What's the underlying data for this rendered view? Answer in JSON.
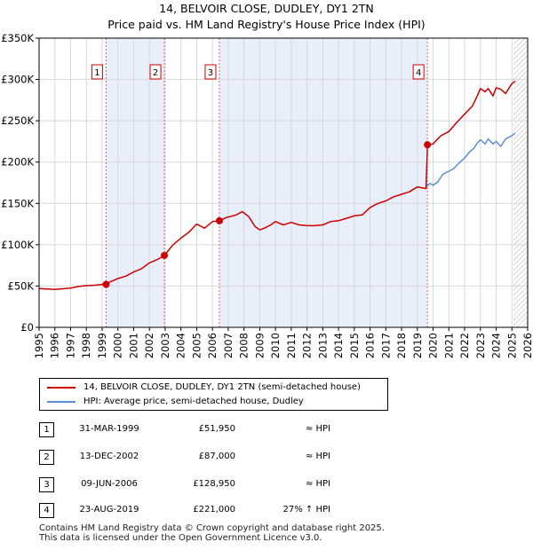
{
  "chart_data": {
    "type": "line",
    "title": "14, BELVOIR CLOSE, DUDLEY, DY1 2TN",
    "subtitle": "Price paid vs. HM Land Registry's House Price Index (HPI)",
    "xlabel": "",
    "ylabel": "",
    "xlim": [
      1995,
      2026
    ],
    "ylim": [
      0,
      350000
    ],
    "grid": true,
    "x_ticks": [
      "1995",
      "1996",
      "1997",
      "1998",
      "1999",
      "2000",
      "2001",
      "2002",
      "2003",
      "2004",
      "2005",
      "2006",
      "2007",
      "2008",
      "2009",
      "2010",
      "2011",
      "2012",
      "2013",
      "2014",
      "2015",
      "2016",
      "2017",
      "2018",
      "2019",
      "2020",
      "2021",
      "2022",
      "2023",
      "2024",
      "2025",
      "2026"
    ],
    "y_ticks": [
      {
        "value": 0,
        "label": "£0"
      },
      {
        "value": 50000,
        "label": "£50K"
      },
      {
        "value": 100000,
        "label": "£100K"
      },
      {
        "value": 150000,
        "label": "£150K"
      },
      {
        "value": 200000,
        "label": "£200K"
      },
      {
        "value": 250000,
        "label": "£250K"
      },
      {
        "value": 300000,
        "label": "£300K"
      },
      {
        "value": 350000,
        "label": "£350K"
      }
    ],
    "series": [
      {
        "name": "14, BELVOIR CLOSE, DUDLEY, DY1 2TN (semi-detached house)",
        "color": "#cc0000",
        "x": [
          1995.0,
          1996.0,
          1997.0,
          1997.5,
          1998.0,
          1998.5,
          1999.0,
          1999.25,
          1999.5,
          2000.0,
          2000.5,
          2001.0,
          2001.5,
          2002.0,
          2002.5,
          2002.95,
          2003.5,
          2004.0,
          2004.5,
          2005.0,
          2005.5,
          2006.0,
          2006.44,
          2006.9,
          2007.5,
          2007.9,
          2008.3,
          2008.7,
          2009.0,
          2009.3,
          2009.7,
          2010.0,
          2010.5,
          2011.0,
          2011.5,
          2012.0,
          2012.5,
          2013.0,
          2013.5,
          2014.0,
          2014.5,
          2015.0,
          2015.5,
          2016.0,
          2016.5,
          2017.0,
          2017.5,
          2018.0,
          2018.5,
          2019.0,
          2019.55,
          2019.64,
          2020.0,
          2020.5,
          2021.0,
          2021.5,
          2022.0,
          2022.5,
          2022.8,
          2023.0,
          2023.3,
          2023.5,
          2023.8,
          2024.0,
          2024.3,
          2024.6,
          2025.0,
          2025.2
        ],
        "values": [
          47000,
          46000,
          47500,
          49500,
          50500,
          51000,
          51950,
          53000,
          55000,
          59000,
          62000,
          67000,
          71000,
          78000,
          82000,
          87000,
          100000,
          108000,
          115000,
          125000,
          120000,
          128000,
          128950,
          133000,
          136000,
          140000,
          134000,
          122000,
          118000,
          120000,
          124000,
          128000,
          124000,
          127000,
          124000,
          123000,
          123000,
          124000,
          128000,
          129000,
          132000,
          135000,
          136000,
          145000,
          150000,
          153000,
          158000,
          161000,
          164000,
          170000,
          168000,
          221000,
          222000,
          232000,
          237000,
          248000,
          258000,
          268000,
          280000,
          289000,
          285000,
          289000,
          280000,
          290000,
          288000,
          283000,
          295000,
          298000
        ]
      },
      {
        "name": "HPI: Average price, semi-detached house, Dudley",
        "color": "#5b8fd4",
        "x": [
          2019.55,
          2019.8,
          2020.0,
          2020.3,
          2020.6,
          2021.0,
          2021.3,
          2021.6,
          2022.0,
          2022.3,
          2022.6,
          2022.8,
          2023.0,
          2023.3,
          2023.5,
          2023.8,
          2024.0,
          2024.3,
          2024.6,
          2025.0,
          2025.2
        ],
        "values": [
          170000,
          174000,
          172000,
          176000,
          185000,
          189000,
          192000,
          198000,
          205000,
          212000,
          217000,
          223000,
          227000,
          222000,
          228000,
          222000,
          225000,
          219000,
          228000,
          232000,
          235000
        ]
      }
    ],
    "sales": [
      {
        "label": "1",
        "x": 1999.25,
        "value": 51950
      },
      {
        "label": "2",
        "x": 2002.95,
        "value": 87000
      },
      {
        "label": "3",
        "x": 2006.44,
        "value": 128950
      },
      {
        "label": "4",
        "x": 2019.64,
        "value": 221000
      }
    ],
    "shaded_spans": [
      [
        1999.25,
        2002.95
      ],
      [
        2006.44,
        2019.64
      ]
    ],
    "hatched_from": 2025.1
  },
  "legend": {
    "property": "14, BELVOIR CLOSE, DUDLEY, DY1 2TN (semi-detached house)",
    "hpi": "HPI: Average price, semi-detached house, Dudley",
    "property_color": "#cc0000",
    "hpi_color": "#5b8fd4"
  },
  "transactions": [
    {
      "num": "1",
      "date": "31-MAR-1999",
      "price": "£51,950",
      "hpi": "≈ HPI"
    },
    {
      "num": "2",
      "date": "13-DEC-2002",
      "price": "£87,000",
      "hpi": "≈ HPI"
    },
    {
      "num": "3",
      "date": "09-JUN-2006",
      "price": "£128,950",
      "hpi": "≈ HPI"
    },
    {
      "num": "4",
      "date": "23-AUG-2019",
      "price": "£221,000",
      "hpi": "27% ↑ HPI"
    }
  ],
  "footer": {
    "line1": "Contains HM Land Registry data © Crown copyright and database right 2025.",
    "line2": "This data is licensed under the Open Government Licence v3.0."
  }
}
